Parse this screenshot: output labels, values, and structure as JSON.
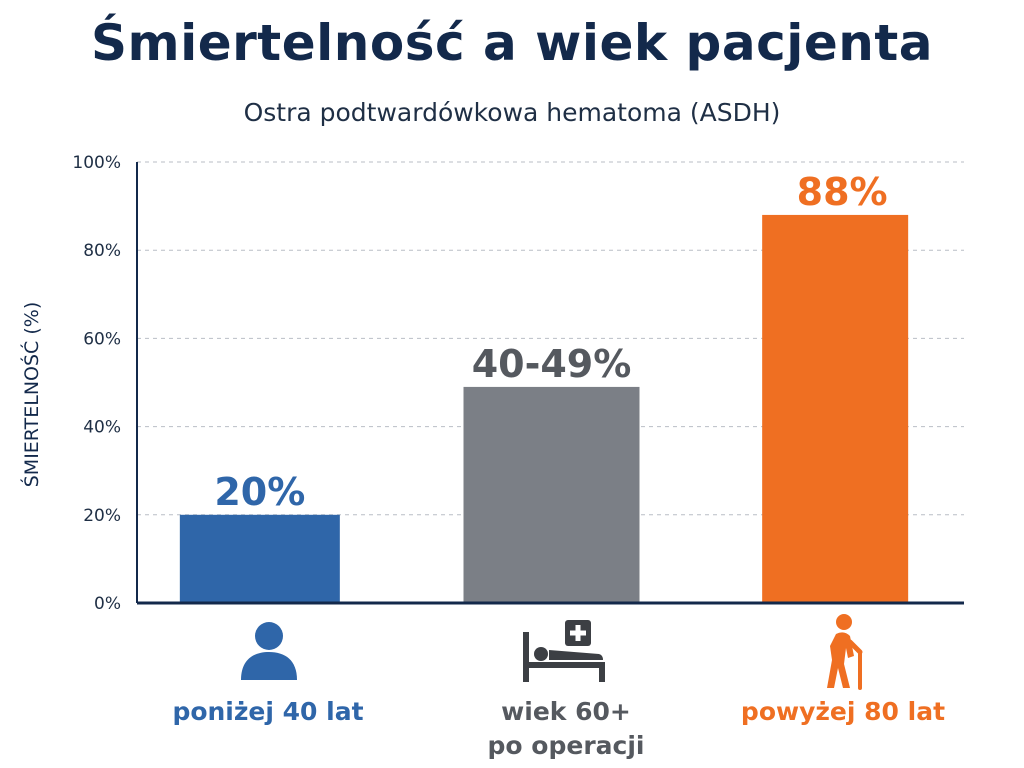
{
  "chart_data": {
    "type": "bar",
    "title": "Śmiertelność a wiek pacjenta",
    "subtitle": "Ostra podtwardówkowa hematoma (ASDH)",
    "ylabel": "ŚMIERTELNOŚĆ (%)",
    "xlabel": "",
    "ylim": [
      0,
      100
    ],
    "yticks": [
      0,
      20,
      40,
      60,
      80,
      100
    ],
    "ytick_labels": [
      "0%",
      "20%",
      "40%",
      "60%",
      "80%",
      "100%"
    ],
    "grid": true,
    "categories": [
      "poniżej 40 lat",
      "wiek 60+ po operacji",
      "powyżej 80 lat"
    ],
    "category_lines": [
      [
        "poniżej 40 lat"
      ],
      [
        "wiek 60+",
        "po operacji"
      ],
      [
        "powyżej 80 lat"
      ]
    ],
    "values": [
      20,
      49,
      88
    ],
    "value_labels": [
      "20%",
      "40-49%",
      "88%"
    ],
    "colors": [
      "#2f66a9",
      "#7b7f86",
      "#ef6f22"
    ],
    "label_colors": [
      "#2f66a9",
      "#55595f",
      "#ef6f22"
    ],
    "icons": [
      "person-icon",
      "hospital-bed-icon",
      "elderly-person-icon"
    ]
  }
}
